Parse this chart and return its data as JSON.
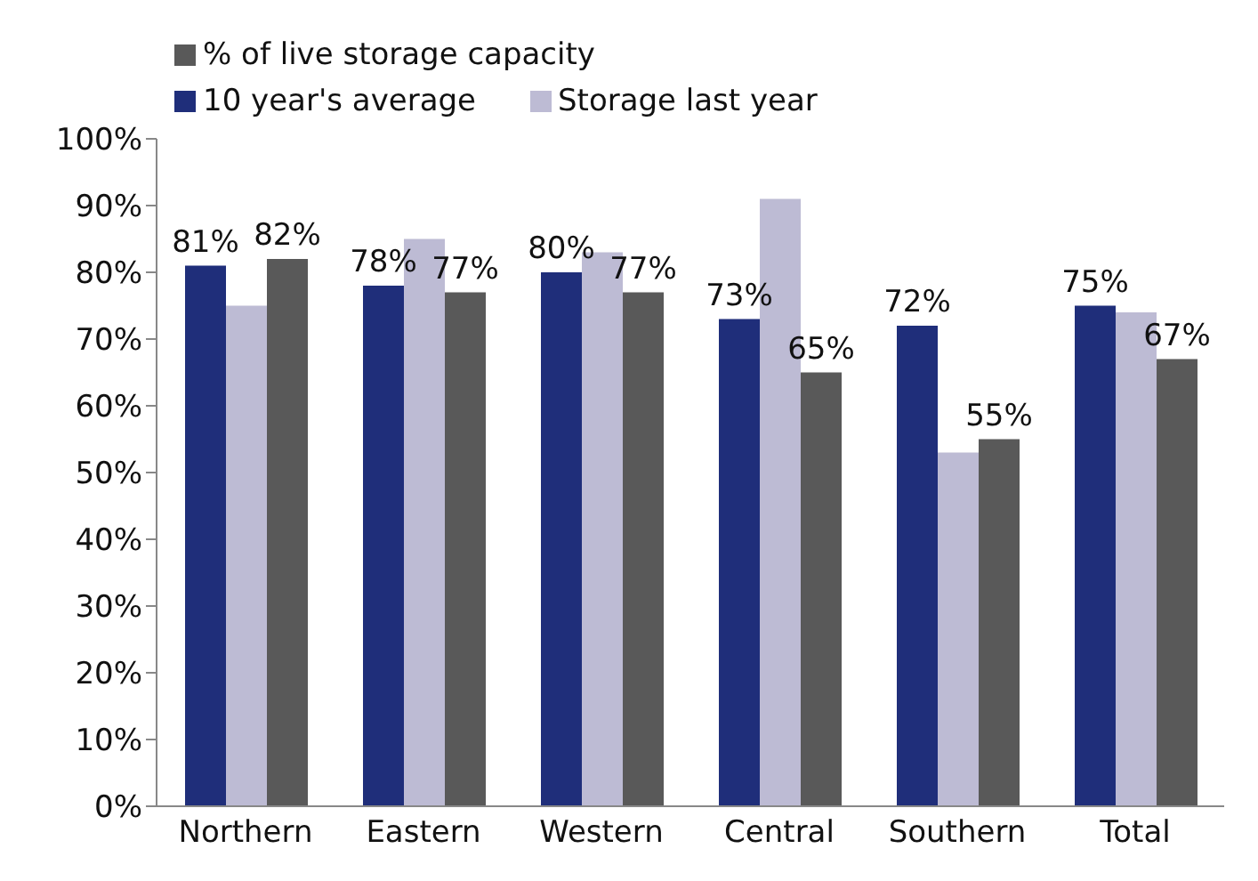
{
  "chart_data": {
    "type": "bar",
    "categories": [
      "Northern",
      "Eastern",
      "Western",
      "Central",
      "Southern",
      "Total"
    ],
    "series": [
      {
        "name": "10 year's average",
        "color": "#1f2e7a",
        "values": [
          81,
          78,
          80,
          73,
          72,
          75
        ],
        "value_labels": [
          "81%",
          "78%",
          "80%",
          "73%",
          "72%",
          "75%"
        ]
      },
      {
        "name": "Storage last year",
        "color": "#bdbbd4",
        "values": [
          75,
          85,
          83,
          91,
          53,
          74
        ]
      },
      {
        "name": "% of live storage capacity",
        "color": "#595959",
        "values": [
          82,
          77,
          77,
          65,
          55,
          67
        ],
        "value_labels": [
          "82%",
          "77%",
          "77%",
          "65%",
          "55%",
          "67%"
        ]
      }
    ],
    "ylim": [
      0,
      100
    ],
    "yticks": [
      {
        "value": 0,
        "label": "0%"
      },
      {
        "value": 10,
        "label": "10%"
      },
      {
        "value": 20,
        "label": "20%"
      },
      {
        "value": 30,
        "label": "30%"
      },
      {
        "value": 40,
        "label": "40%"
      },
      {
        "value": 50,
        "label": "50%"
      },
      {
        "value": 60,
        "label": "60%"
      },
      {
        "value": 70,
        "label": "70%"
      },
      {
        "value": 80,
        "label": "80%"
      },
      {
        "value": 90,
        "label": "90%"
      },
      {
        "value": 100,
        "label": "100%"
      }
    ],
    "grid": false,
    "legend": "top left"
  }
}
